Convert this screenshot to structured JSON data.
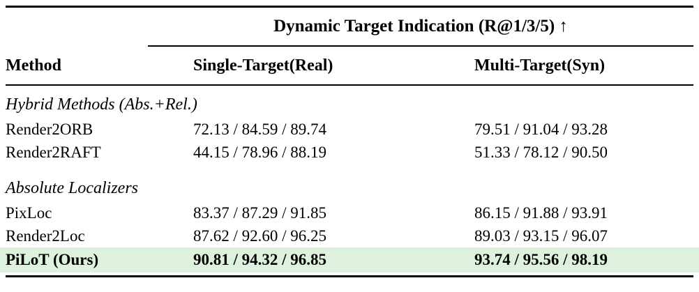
{
  "table": {
    "group_header": "Dynamic Target Indication (R@1/3/5) ↑",
    "columns": [
      "Method",
      "Single-Target(Real)",
      "Multi-Target(Syn)"
    ],
    "highlight_color": "#def0de",
    "sections": [
      {
        "title": "Hybrid Methods (Abs.+Rel.)",
        "rows": [
          {
            "method": "Render2ORB",
            "single": "72.13 / 84.59 / 89.74",
            "multi": "79.51 / 91.04 / 93.28"
          },
          {
            "method": "Render2RAFT",
            "single": "44.15 / 78.96 / 88.19",
            "multi": "51.33 / 78.12 / 90.50"
          }
        ]
      },
      {
        "title": "Absolute Localizers",
        "rows": [
          {
            "method": "PixLoc",
            "single": "83.37 / 87.29 / 91.85",
            "multi": "86.15 / 91.88 / 93.91"
          },
          {
            "method": "Render2Loc",
            "single": "87.62 / 92.60 / 96.25",
            "multi": "89.03 / 93.15 / 96.07"
          },
          {
            "method": "PiLoT (Ours)",
            "single": "90.81 / 94.32 / 96.85",
            "multi": "93.74 / 95.56 / 98.19"
          }
        ]
      }
    ]
  }
}
